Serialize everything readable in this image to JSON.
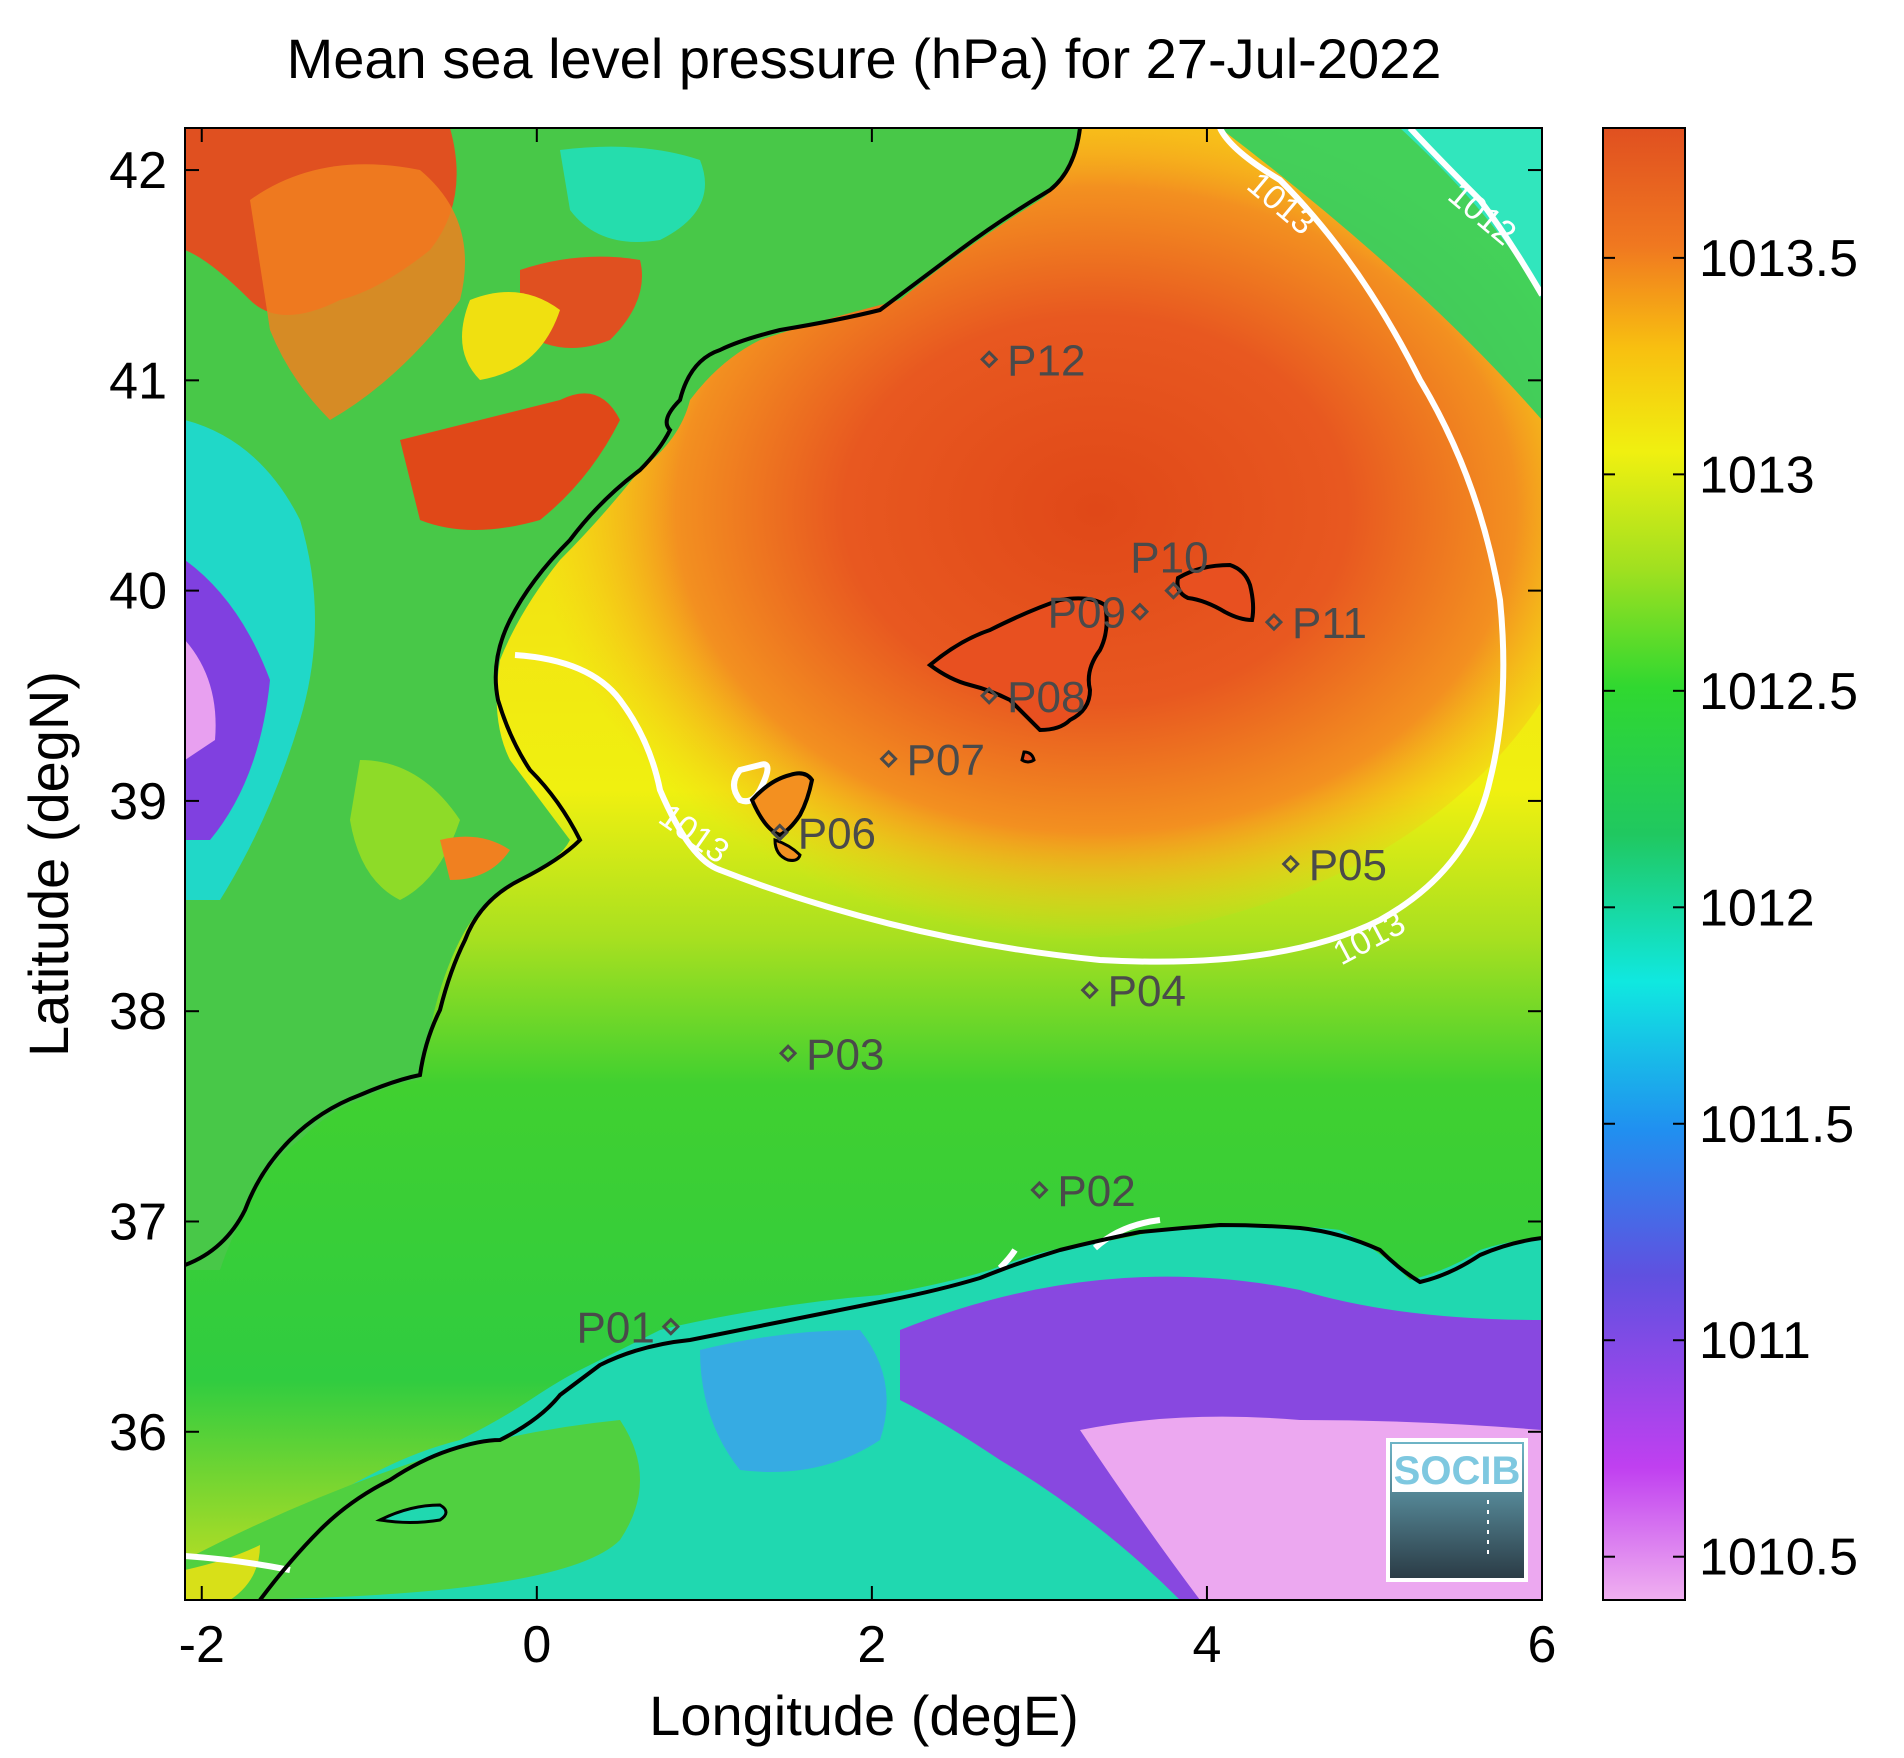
{
  "chart_data": {
    "type": "heatmap",
    "title": "Mean sea level pressure (hPa) for 27-Jul-2022",
    "xlabel": "Longitude (degE)",
    "ylabel": "Latitude (degN)",
    "xlim": [
      -2.1,
      6.0
    ],
    "ylim": [
      35.2,
      42.2
    ],
    "x_ticks": [
      -2,
      0,
      2,
      4,
      6
    ],
    "y_ticks": [
      36,
      37,
      38,
      39,
      40,
      41,
      42
    ],
    "colorbar": {
      "range": [
        1010.4,
        1013.8
      ],
      "ticks": [
        1010.5,
        1011,
        1011.5,
        1012,
        1012.5,
        1013,
        1013.5
      ],
      "colors": [
        "#f0b0f0",
        "#c040f0",
        "#6050e0",
        "#2090f0",
        "#10e8e0",
        "#20c860",
        "#30d830",
        "#a0e020",
        "#f0f010",
        "#f8c010",
        "#f07820",
        "#e05020"
      ]
    },
    "contour_labels": [
      {
        "text": "1013",
        "lon": 0.9,
        "lat": 38.8
      },
      {
        "text": "1013",
        "lon": 5.0,
        "lat": 38.3
      },
      {
        "text": "1013",
        "lon": 4.4,
        "lat": 41.8
      },
      {
        "text": "1012",
        "lon": 5.6,
        "lat": 41.75
      }
    ],
    "stations": [
      {
        "name": "P01",
        "lon": 0.8,
        "lat": 36.5
      },
      {
        "name": "P02",
        "lon": 3.0,
        "lat": 37.15
      },
      {
        "name": "P03",
        "lon": 1.5,
        "lat": 37.8
      },
      {
        "name": "P04",
        "lon": 3.3,
        "lat": 38.1
      },
      {
        "name": "P05",
        "lon": 4.5,
        "lat": 38.7
      },
      {
        "name": "P06",
        "lon": 1.45,
        "lat": 38.85
      },
      {
        "name": "P07",
        "lon": 2.1,
        "lat": 39.2
      },
      {
        "name": "P08",
        "lon": 2.7,
        "lat": 39.5
      },
      {
        "name": "P09",
        "lon": 3.6,
        "lat": 39.9
      },
      {
        "name": "P10",
        "lon": 3.8,
        "lat": 40.0
      },
      {
        "name": "P11",
        "lon": 4.4,
        "lat": 39.85
      },
      {
        "name": "P12",
        "lon": 2.7,
        "lat": 41.1
      }
    ]
  },
  "logo": {
    "text": "SOCIB"
  }
}
